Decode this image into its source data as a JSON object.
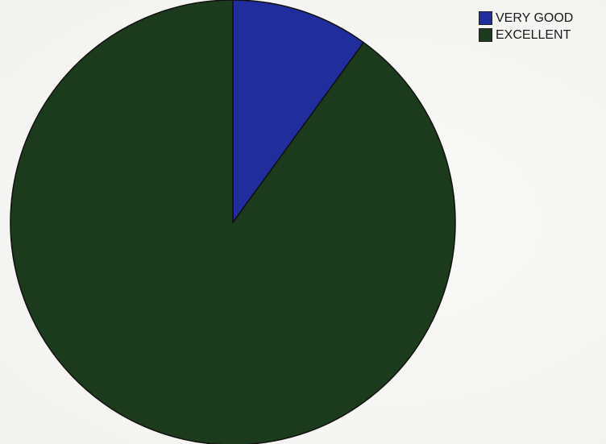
{
  "chart_data": {
    "type": "pie",
    "title": "",
    "legend_position": "top-right",
    "slices": [
      {
        "label": "VERY GOOD",
        "value": 10,
        "color": "#1f2e9c"
      },
      {
        "label": "EXCELLENT",
        "value": 90,
        "color": "#1c3a1c"
      }
    ],
    "start_angle": "12 o'clock",
    "direction": "clockwise",
    "slice_edge_color": "#111111"
  }
}
